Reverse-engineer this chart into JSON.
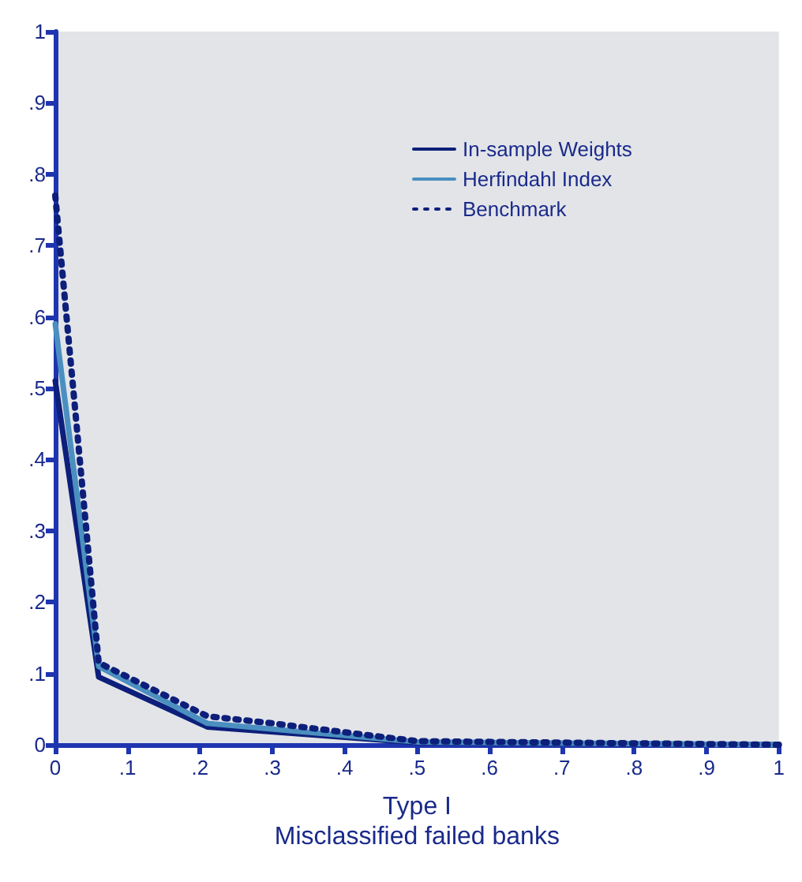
{
  "chart_data": {
    "type": "line",
    "xlabel": "Type I\nMisclassified failed banks",
    "xlim": [
      0,
      1
    ],
    "ylim": [
      0,
      1
    ],
    "xticks": [
      0,
      {
        "value": 0.1,
        "label": ".1"
      },
      {
        "value": 0.2,
        "label": ".2"
      },
      {
        "value": 0.3,
        "label": ".3"
      },
      {
        "value": 0.4,
        "label": ".4"
      },
      {
        "value": 0.5,
        "label": ".5"
      },
      {
        "value": 0.6,
        "label": ".6"
      },
      {
        "value": 0.7,
        "label": ".7"
      },
      {
        "value": 0.8,
        "label": ".8"
      },
      {
        "value": 0.9,
        "label": ".9"
      },
      1
    ],
    "yticks": [
      0,
      {
        "value": 0.1,
        "label": ".1"
      },
      {
        "value": 0.2,
        "label": ".2"
      },
      {
        "value": 0.3,
        "label": ".3"
      },
      {
        "value": 0.4,
        "label": ".4"
      },
      {
        "value": 0.5,
        "label": ".5"
      },
      {
        "value": 0.6,
        "label": ".6"
      },
      {
        "value": 0.7,
        "label": ".7"
      },
      {
        "value": 0.8,
        "label": ".8"
      },
      {
        "value": 0.9,
        "label": ".9"
      },
      1
    ],
    "legend": "top right",
    "grid": false,
    "marker": "none",
    "series": [
      {
        "name": "In-sample Weights",
        "color": "#0d1f7a",
        "x": [
          0,
          0.06,
          0.21,
          0.5,
          1
        ],
        "values": [
          0.51,
          0.095,
          0.025,
          0.003,
          0
        ]
      },
      {
        "name": "Herfindahl Index",
        "color": "#4a8fc0",
        "x": [
          0,
          0.06,
          0.21,
          0.5,
          1
        ],
        "values": [
          0.59,
          0.11,
          0.03,
          0.004,
          0
        ]
      },
      {
        "name": "Benchmark",
        "color": "#0d1f7a",
        "line_style": "dotted",
        "x": [
          0,
          0.06,
          0.21,
          0.3,
          0.5,
          1
        ],
        "values": [
          0.77,
          0.115,
          0.04,
          0.03,
          0.005,
          0
        ]
      }
    ]
  }
}
